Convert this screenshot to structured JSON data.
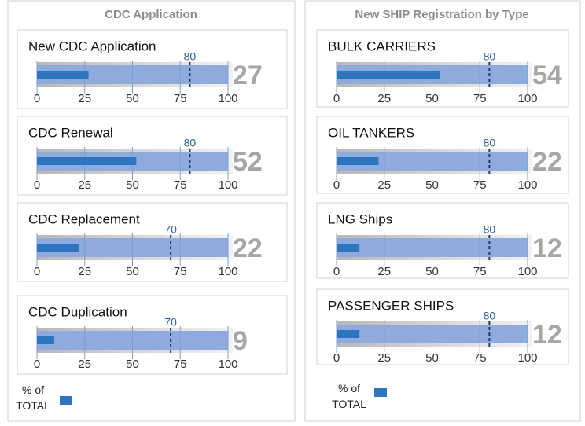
{
  "panels": [
    {
      "title": "CDC Application",
      "legend": "% of TOTAL",
      "legend_color": "#2e75c0"
    },
    {
      "title": "New SHIP Registration by Type",
      "legend": "% of TOTAL",
      "legend_color": "#2e75c0"
    }
  ],
  "chart_data": [
    {
      "type": "bullet",
      "title": "New CDC Application",
      "value": 27,
      "target": 80,
      "color": "#2e75c0",
      "range_color": "#8faadc",
      "xlim": [
        0,
        100
      ],
      "xticks": [
        0,
        25,
        50,
        75,
        100
      ],
      "grid": true
    },
    {
      "type": "bullet",
      "title": "CDC Renewal",
      "value": 52,
      "target": 80,
      "color": "#2e75c0",
      "range_color": "#8faadc",
      "xlim": [
        0,
        100
      ],
      "xticks": [
        0,
        25,
        50,
        75,
        100
      ],
      "grid": true
    },
    {
      "type": "bullet",
      "title": "CDC Replacement",
      "value": 22,
      "target": 70,
      "color": "#2e75c0",
      "range_color": "#8faadc",
      "xlim": [
        0,
        100
      ],
      "xticks": [
        0,
        25,
        50,
        75,
        100
      ],
      "grid": true
    },
    {
      "type": "bullet",
      "title": "CDC Duplication",
      "value": 9,
      "target": 70,
      "color": "#2e75c0",
      "range_color": "#8faadc",
      "xlim": [
        0,
        100
      ],
      "xticks": [
        0,
        25,
        50,
        75,
        100
      ],
      "grid": true
    },
    {
      "type": "bullet",
      "title": "BULK CARRIERS",
      "value": 54,
      "target": 80,
      "color": "#2e75c0",
      "range_color": "#8faadc",
      "xlim": [
        0,
        100
      ],
      "xticks": [
        0,
        25,
        50,
        75,
        100
      ],
      "grid": true
    },
    {
      "type": "bullet",
      "title": "OIL TANKERS",
      "value": 22,
      "target": 80,
      "color": "#2e75c0",
      "range_color": "#8faadc",
      "xlim": [
        0,
        100
      ],
      "xticks": [
        0,
        25,
        50,
        75,
        100
      ],
      "grid": true
    },
    {
      "type": "bullet",
      "title": "LNG Ships",
      "value": 12,
      "target": 80,
      "color": "#2e75c0",
      "range_color": "#8faadc",
      "xlim": [
        0,
        100
      ],
      "xticks": [
        0,
        25,
        50,
        75,
        100
      ],
      "grid": true
    },
    {
      "type": "bullet",
      "title": "PASSENGER SHIPS",
      "value": 12,
      "target": 80,
      "color": "#2e75c0",
      "range_color": "#8faadc",
      "xlim": [
        0,
        100
      ],
      "xticks": [
        0,
        25,
        50,
        75,
        100
      ],
      "grid": true
    }
  ]
}
